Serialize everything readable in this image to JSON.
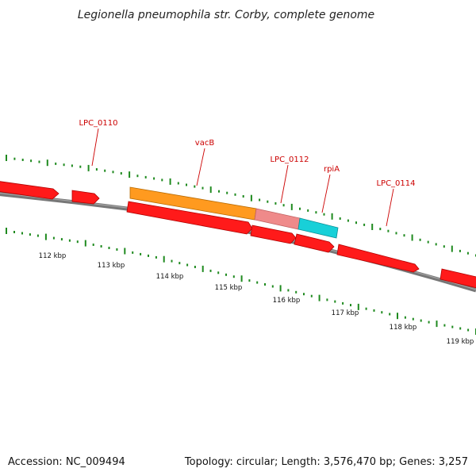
{
  "title": "Legionella pneumophila str. Corby, complete genome",
  "footer": {
    "accession": "Accession: NC_009494",
    "stats": "Topology: circular; Length: 3,576,470 bp; Genes: 3,257"
  },
  "colors": {
    "gene": "#ff0000",
    "gene_shadow": "#b00000",
    "backbone": "#888888",
    "tick": "#1f8a1f",
    "label": "#cc0000",
    "cds_orange": "#ff9a1f",
    "cds_pink": "#ef8a8a",
    "cds_cyan": "#18d0d8"
  },
  "gene_labels": [
    "LPC_0110",
    "vacB",
    "LPC_0112",
    "rpiA",
    "LPC_0114"
  ],
  "kbp_labels": [
    "112 kbp",
    "113 kbp",
    "114 kbp",
    "115 kbp",
    "116 kbp",
    "117 kbp",
    "118 kbp",
    "119 kbp"
  ]
}
